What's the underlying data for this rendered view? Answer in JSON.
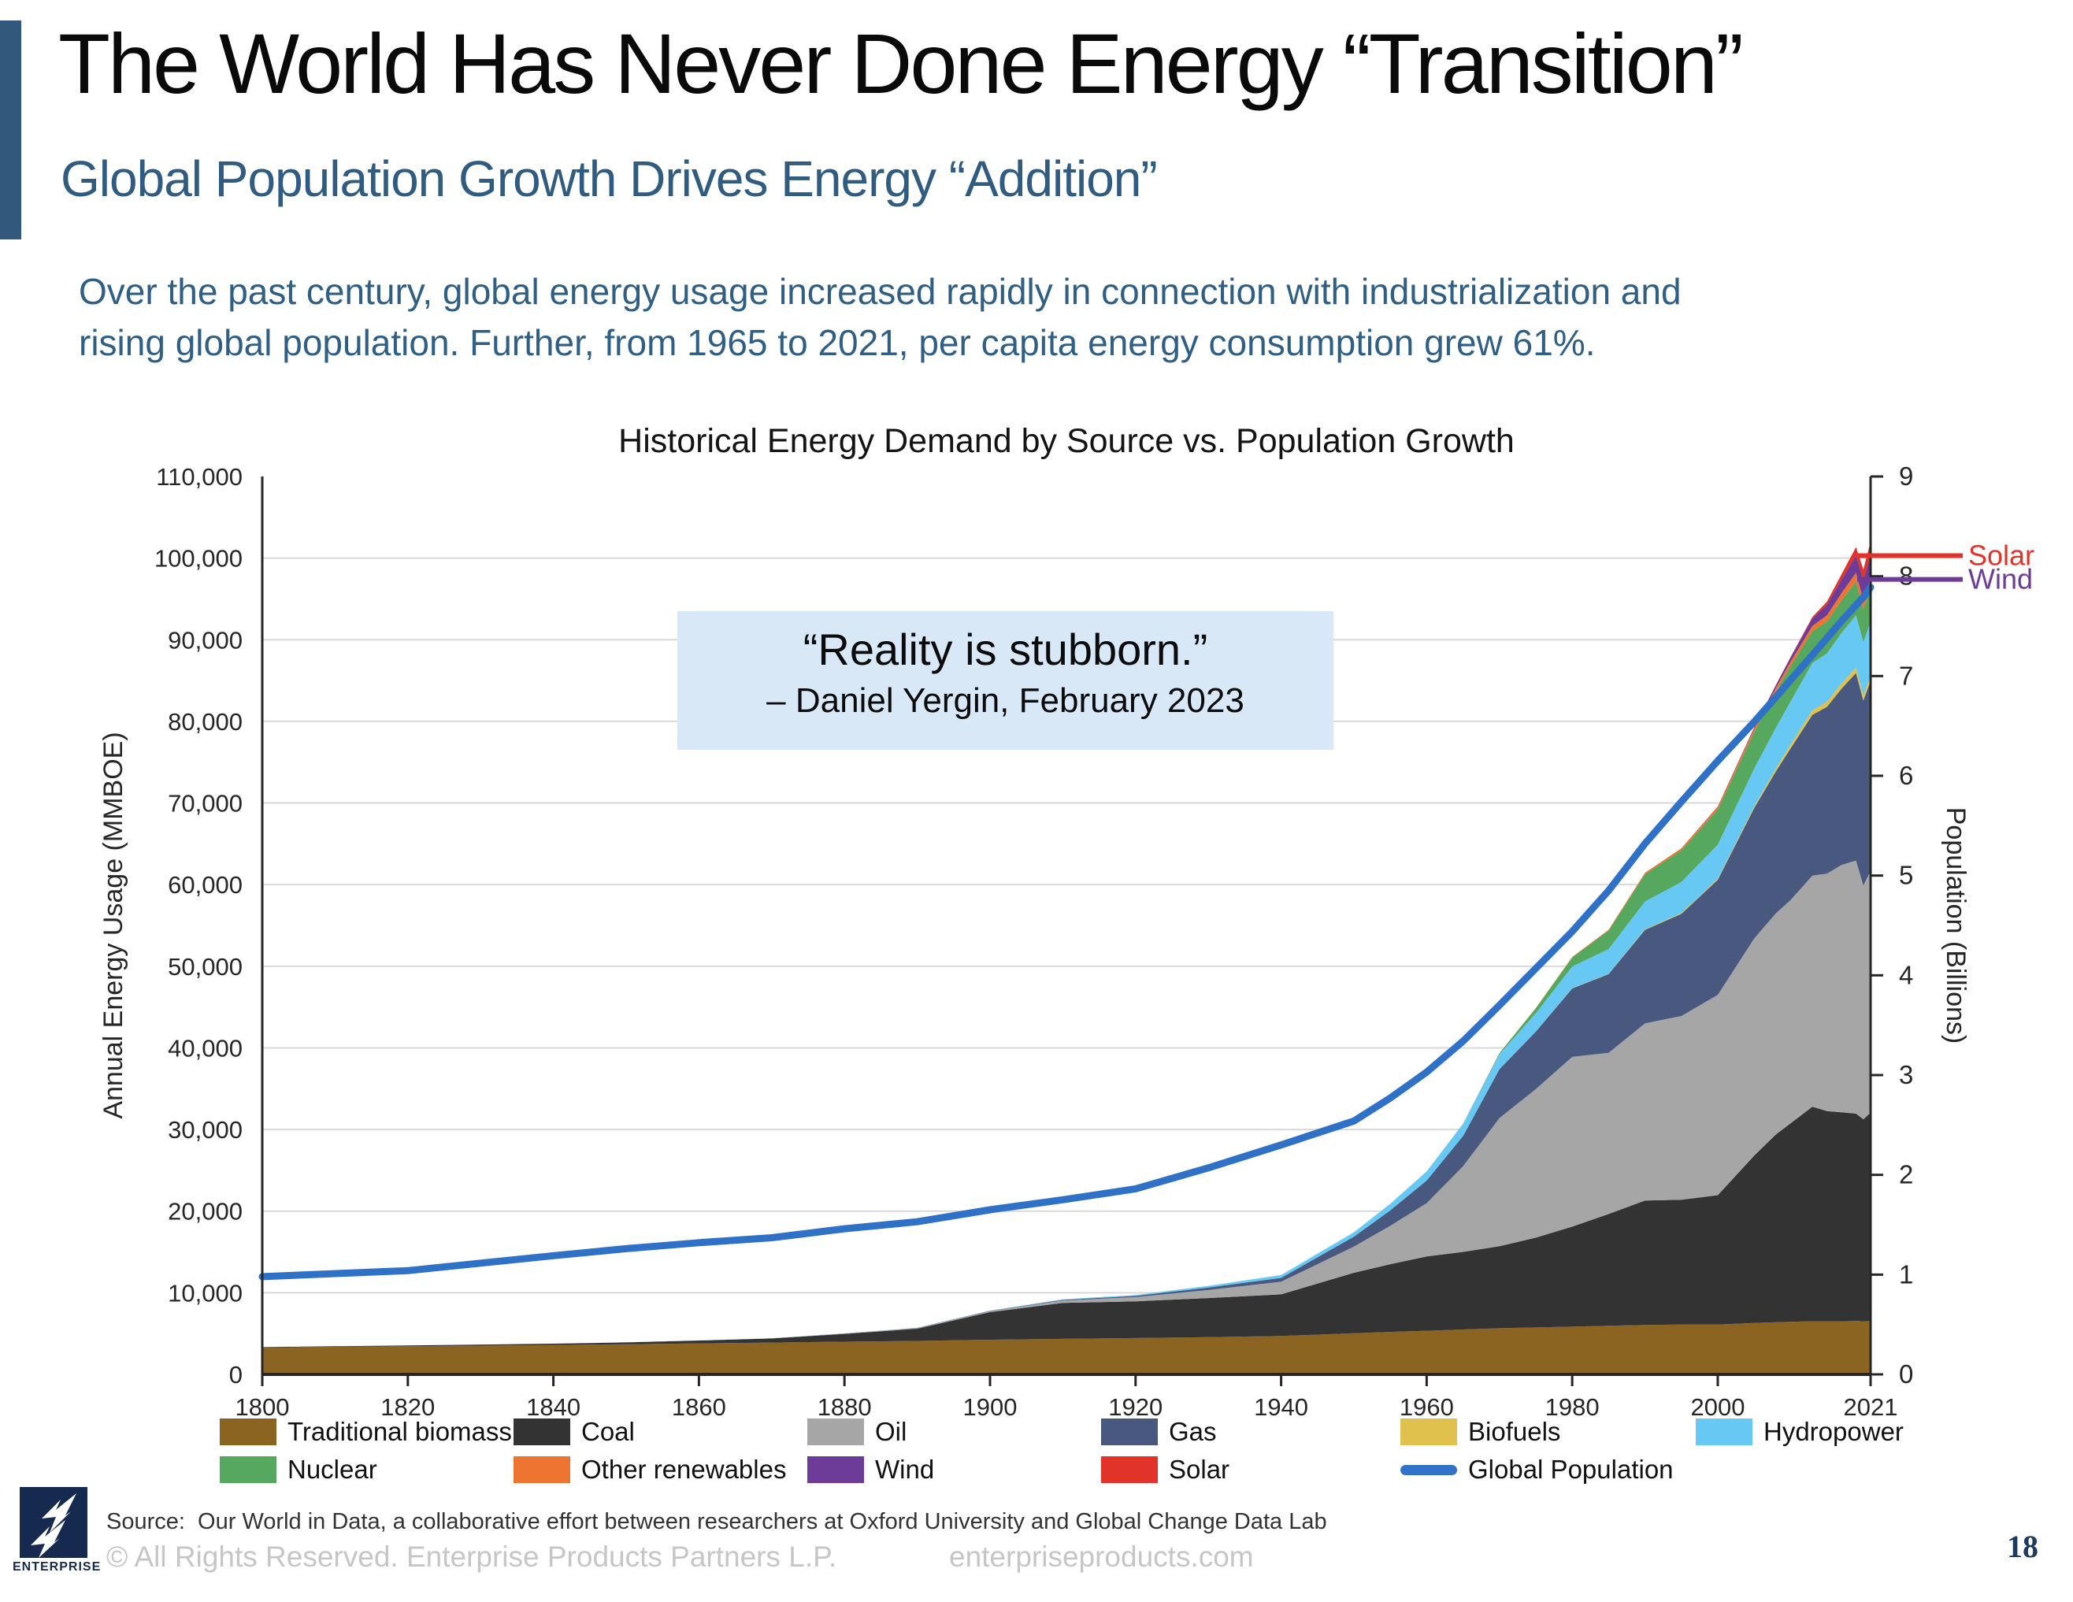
{
  "slide": {
    "title": "The World Has Never Done Energy “Transition”",
    "subtitle": "Global Population Growth Drives Energy “Addition”",
    "intro_line1": "Over the past century, global energy usage increased rapidly in connection with industrialization and",
    "intro_line2": "rising global population. Further, from 1965 to 2021, per capita energy consumption grew 61%.",
    "page_number": "18"
  },
  "quote": {
    "text": "“Reality is stubborn.”",
    "attribution": "– Daniel Yergin, February 2023"
  },
  "colors": {
    "accent_bar": "#32587c",
    "subtitle_text": "#2f5c80",
    "quote_background": "#d9e8f7",
    "gridline": "#d9d9d9",
    "axis": "#262626",
    "logo_navy": "#152a4e",
    "page_number_navy": "#1f3a5f",
    "footer_gray": "#c6c6c6"
  },
  "chart_data": {
    "type": "area",
    "stacked": true,
    "title": "Historical Energy Demand by Source vs. Population Growth",
    "ylabel_left": "Annual Energy Usage (MMBOE)",
    "ylabel_right": "Population (Billions)",
    "ylim_left": [
      0,
      110000
    ],
    "ylim_right": [
      0,
      9
    ],
    "x_range": [
      1800,
      2021
    ],
    "x_tick_labels": [
      1800,
      1820,
      1840,
      1860,
      1880,
      1900,
      1920,
      1940,
      1960,
      1980,
      2000,
      2021
    ],
    "grid": "horizontal",
    "legend_position": "bottom",
    "years": [
      1800,
      1820,
      1840,
      1850,
      1860,
      1870,
      1880,
      1890,
      1900,
      1910,
      1920,
      1930,
      1940,
      1950,
      1955,
      1960,
      1965,
      1970,
      1975,
      1980,
      1985,
      1990,
      1995,
      2000,
      2005,
      2008,
      2010,
      2013,
      2015,
      2017,
      2019,
      2020,
      2021
    ],
    "series": [
      {
        "name": "Traditional biomass",
        "color": "#8a6420",
        "values": [
          3300,
          3450,
          3600,
          3700,
          3800,
          3900,
          4000,
          4100,
          4250,
          4350,
          4450,
          4550,
          4700,
          5050,
          5200,
          5350,
          5500,
          5650,
          5750,
          5850,
          5950,
          6050,
          6100,
          6100,
          6300,
          6400,
          6450,
          6500,
          6500,
          6500,
          6550,
          6500,
          6550
        ]
      },
      {
        "name": "Coal",
        "color": "#333333",
        "values": [
          60,
          90,
          160,
          220,
          350,
          500,
          960,
          1500,
          3370,
          4400,
          4500,
          4800,
          5100,
          7400,
          8300,
          9100,
          9500,
          10050,
          11000,
          12250,
          13700,
          15250,
          15300,
          15850,
          20500,
          23000,
          24300,
          26300,
          25750,
          25600,
          25400,
          24750,
          25500
        ]
      },
      {
        "name": "Oil",
        "color": "#a6a6a6",
        "values": [
          0,
          0,
          0,
          5,
          10,
          30,
          45,
          80,
          125,
          300,
          520,
          980,
          1550,
          3200,
          4700,
          6530,
          10500,
          15700,
          18200,
          20800,
          19750,
          21700,
          22500,
          24550,
          26600,
          27100,
          27350,
          28300,
          29100,
          30300,
          31000,
          28650,
          29600
        ]
      },
      {
        "name": "Gas",
        "color": "#48587e",
        "values": [
          0,
          0,
          0,
          0,
          0,
          0,
          15,
          25,
          40,
          80,
          140,
          300,
          470,
          1230,
          1900,
          2770,
          3700,
          5990,
          7040,
          8380,
          9640,
          11460,
          12530,
          14100,
          15980,
          17400,
          18580,
          19700,
          20430,
          21600,
          22980,
          22650,
          23300
        ]
      },
      {
        "name": "Biofuels",
        "color": "#e0c14e",
        "values": [
          0,
          0,
          0,
          0,
          0,
          0,
          0,
          0,
          0,
          0,
          0,
          0,
          0,
          0,
          0,
          0,
          0,
          10,
          20,
          30,
          40,
          65,
          85,
          110,
          200,
          350,
          465,
          550,
          590,
          620,
          650,
          620,
          670
        ]
      },
      {
        "name": "Hydropower",
        "color": "#67c9f3",
        "values": [
          0,
          0,
          0,
          0,
          0,
          0,
          5,
          10,
          30,
          70,
          120,
          220,
          350,
          530,
          800,
          1120,
          1450,
          1820,
          2230,
          2650,
          3030,
          3410,
          3800,
          4180,
          4620,
          5000,
          5290,
          5800,
          5950,
          6200,
          6400,
          6550,
          6580
        ]
      },
      {
        "name": "Nuclear",
        "color": "#55a85e",
        "values": [
          0,
          0,
          0,
          0,
          0,
          0,
          0,
          0,
          0,
          0,
          0,
          0,
          0,
          0,
          0,
          0,
          40,
          130,
          620,
          1120,
          2260,
          3340,
          3880,
          4310,
          4480,
          4400,
          4340,
          3900,
          3920,
          3980,
          4160,
          3990,
          4140
        ]
      },
      {
        "name": "Other renewables",
        "color": "#ed7431",
        "values": [
          0,
          0,
          0,
          0,
          0,
          0,
          0,
          0,
          0,
          0,
          0,
          0,
          0,
          0,
          0,
          0,
          0,
          20,
          30,
          60,
          100,
          180,
          250,
          330,
          400,
          460,
          520,
          650,
          750,
          900,
          1050,
          1130,
          1210
        ]
      },
      {
        "name": "Wind",
        "color": "#6d3c98",
        "values": [
          0,
          0,
          0,
          0,
          0,
          0,
          0,
          0,
          0,
          0,
          0,
          0,
          0,
          0,
          0,
          0,
          0,
          0,
          0,
          0,
          0,
          5,
          15,
          50,
          170,
          350,
          530,
          900,
          1280,
          1650,
          2080,
          2440,
          2870
        ]
      },
      {
        "name": "Solar",
        "color": "#e2332a",
        "values": [
          0,
          0,
          0,
          0,
          0,
          0,
          0,
          0,
          0,
          0,
          0,
          0,
          0,
          0,
          0,
          0,
          0,
          0,
          0,
          0,
          0,
          0,
          0,
          5,
          15,
          30,
          55,
          190,
          395,
          650,
          1080,
          1320,
          1590
        ]
      }
    ],
    "population_line": {
      "name": "Global Population",
      "color": "#2f71c6",
      "axis": "right",
      "values": [
        0.98,
        1.04,
        1.19,
        1.26,
        1.32,
        1.37,
        1.46,
        1.53,
        1.65,
        1.75,
        1.86,
        2.07,
        2.3,
        2.54,
        2.77,
        3.03,
        3.34,
        3.7,
        4.07,
        4.44,
        4.85,
        5.32,
        5.74,
        6.15,
        6.54,
        6.79,
        6.96,
        7.21,
        7.38,
        7.55,
        7.71,
        7.79,
        7.89
      ]
    },
    "annotations": [
      {
        "label": "Solar",
        "color": "#e2332a",
        "y_value": 100300
      },
      {
        "label": "Wind",
        "color": "#6d3c98",
        "y_value": 97400
      }
    ]
  },
  "legend": {
    "rows": [
      {
        "y": 1798,
        "items": [
          {
            "x": 279,
            "label": "Traditional biomass",
            "color": "#8a6420",
            "swatch": "box"
          },
          {
            "x": 652,
            "label": "Coal",
            "color": "#333333",
            "swatch": "box"
          },
          {
            "x": 1025,
            "label": "Oil",
            "color": "#a6a6a6",
            "swatch": "box"
          },
          {
            "x": 1398,
            "label": "Gas",
            "color": "#48587e",
            "swatch": "box"
          },
          {
            "x": 1778,
            "label": "Biofuels",
            "color": "#e0c14e",
            "swatch": "box"
          },
          {
            "x": 2153,
            "label": "Hydropower",
            "color": "#67c9f3",
            "swatch": "box"
          }
        ]
      },
      {
        "y": 1846,
        "items": [
          {
            "x": 279,
            "label": "Nuclear",
            "color": "#55a85e",
            "swatch": "box"
          },
          {
            "x": 652,
            "label": "Other renewables",
            "color": "#ed7431",
            "swatch": "box"
          },
          {
            "x": 1025,
            "label": "Wind",
            "color": "#6d3c98",
            "swatch": "box"
          },
          {
            "x": 1398,
            "label": "Solar",
            "color": "#e2332a",
            "swatch": "box"
          },
          {
            "x": 1778,
            "label": "Global Population",
            "color": "#3273c8",
            "swatch": "line"
          }
        ]
      }
    ]
  },
  "footer": {
    "logo_text": "ENTERPRISE",
    "source": "Source:  Our World in Data, a collaborative effort between researchers at Oxford University and Global Change Data Lab",
    "copyright": "© All Rights Reserved. Enterprise Products Partners L.P.",
    "website": "enterpriseproducts.com"
  }
}
